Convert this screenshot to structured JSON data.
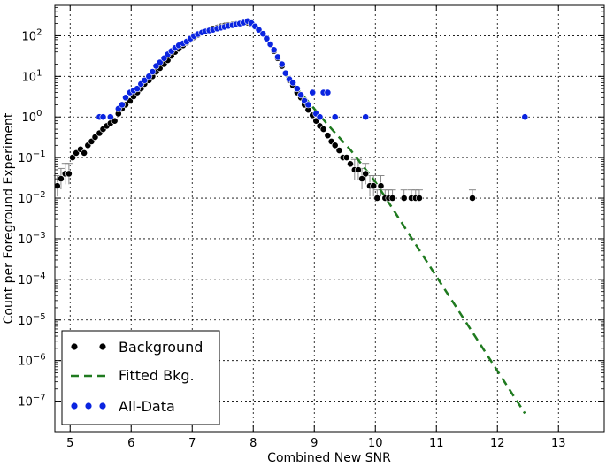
{
  "chart_data": {
    "type": "scatter",
    "xlabel": "Combined New SNR",
    "ylabel": "Count per Foreground Experiment",
    "xlim": [
      4.75,
      13.75
    ],
    "ylim_exp": [
      -7.75,
      2.75
    ],
    "yscale": "log",
    "grid": true,
    "legend_position": "bottom-left",
    "x_ticks": [
      5,
      6,
      7,
      8,
      9,
      10,
      11,
      12,
      13
    ],
    "y_ticks": [
      {
        "exp": 2,
        "label": "10^2"
      },
      {
        "exp": 1,
        "label": "10^1"
      },
      {
        "exp": 0,
        "label": "10^0"
      },
      {
        "exp": -1,
        "label": "10^-1"
      },
      {
        "exp": -2,
        "label": "10^-2"
      },
      {
        "exp": -3,
        "label": "10^-3"
      },
      {
        "exp": -4,
        "label": "10^-4"
      },
      {
        "exp": -5,
        "label": "10^-5"
      },
      {
        "exp": -6,
        "label": "10^-6"
      },
      {
        "exp": -7,
        "label": "10^-7"
      }
    ],
    "series": [
      {
        "name": "Background",
        "color": "#000000",
        "marker": "circle",
        "points": [
          [
            4.79,
            0.02
          ],
          [
            4.85,
            0.03
          ],
          [
            4.92,
            0.04
          ],
          [
            4.98,
            0.04
          ],
          [
            5.04,
            0.1
          ],
          [
            5.1,
            0.13
          ],
          [
            5.17,
            0.16
          ],
          [
            5.23,
            0.13
          ],
          [
            5.29,
            0.2
          ],
          [
            5.35,
            0.25
          ],
          [
            5.41,
            0.32
          ],
          [
            5.48,
            0.4
          ],
          [
            5.54,
            0.5
          ],
          [
            5.6,
            0.6
          ],
          [
            5.66,
            0.7
          ],
          [
            5.73,
            0.8
          ],
          [
            5.79,
            1.2
          ],
          [
            5.85,
            1.6
          ],
          [
            5.91,
            2.0
          ],
          [
            5.98,
            2.5
          ],
          [
            6.04,
            3.2
          ],
          [
            6.1,
            4.0
          ],
          [
            6.16,
            5.0
          ],
          [
            6.22,
            6.5
          ],
          [
            6.29,
            8
          ],
          [
            6.35,
            10
          ],
          [
            6.41,
            13
          ],
          [
            6.47,
            16
          ],
          [
            6.54,
            20
          ],
          [
            6.6,
            25
          ],
          [
            6.66,
            32
          ],
          [
            6.72,
            40
          ],
          [
            6.78,
            48
          ],
          [
            6.85,
            58
          ],
          [
            6.91,
            68
          ],
          [
            6.97,
            80
          ],
          [
            7.03,
            92
          ],
          [
            7.09,
            105
          ],
          [
            7.16,
            118
          ],
          [
            7.22,
            130
          ],
          [
            7.28,
            140
          ],
          [
            7.34,
            150
          ],
          [
            7.41,
            160
          ],
          [
            7.47,
            170
          ],
          [
            7.53,
            178
          ],
          [
            7.59,
            185
          ],
          [
            7.66,
            190
          ],
          [
            7.72,
            195
          ],
          [
            7.78,
            200
          ],
          [
            7.84,
            215
          ],
          [
            7.91,
            210
          ],
          [
            7.97,
            190
          ],
          [
            8.03,
            165
          ],
          [
            8.09,
            140
          ],
          [
            8.16,
            110
          ],
          [
            8.22,
            85
          ],
          [
            8.28,
            60
          ],
          [
            8.34,
            42
          ],
          [
            8.4,
            28
          ],
          [
            8.47,
            18
          ],
          [
            8.53,
            12
          ],
          [
            8.59,
            8
          ],
          [
            8.65,
            6
          ],
          [
            8.72,
            4
          ],
          [
            8.78,
            3
          ],
          [
            8.84,
            2
          ],
          [
            8.9,
            1.5
          ],
          [
            8.97,
            1.1
          ],
          [
            9.03,
            0.8
          ],
          [
            9.09,
            0.6
          ],
          [
            9.15,
            0.5
          ],
          [
            9.22,
            0.35
          ],
          [
            9.28,
            0.25
          ],
          [
            9.34,
            0.2
          ],
          [
            9.41,
            0.15
          ],
          [
            9.47,
            0.1
          ],
          [
            9.53,
            0.1
          ],
          [
            9.59,
            0.07
          ],
          [
            9.66,
            0.05
          ],
          [
            9.72,
            0.05
          ],
          [
            9.78,
            0.03
          ],
          [
            9.84,
            0.04
          ],
          [
            9.91,
            0.02
          ],
          [
            9.97,
            0.02
          ],
          [
            10.03,
            0.01
          ],
          [
            10.09,
            0.02
          ],
          [
            10.16,
            0.01
          ],
          [
            10.22,
            0.01
          ],
          [
            10.28,
            0.01
          ],
          [
            10.47,
            0.01
          ],
          [
            10.59,
            0.01
          ],
          [
            10.66,
            0.01
          ],
          [
            10.72,
            0.01
          ],
          [
            11.59,
            0.01
          ]
        ]
      },
      {
        "name": "Fitted Bkg.",
        "color": "#1f7a1f",
        "line": "dashed",
        "points": [
          [
            8.55,
            10
          ],
          [
            9.2,
            0.7
          ],
          [
            9.6,
            0.15
          ],
          [
            10.0,
            0.025
          ],
          [
            12.45,
            5e-08
          ]
        ]
      },
      {
        "name": "All-Data",
        "color": "#0a24e0",
        "marker": "circle",
        "points": [
          [
            5.48,
            1.0
          ],
          [
            5.54,
            1.0
          ],
          [
            5.66,
            1.0
          ],
          [
            5.79,
            1.6
          ],
          [
            5.85,
            2.0
          ],
          [
            5.91,
            3.0
          ],
          [
            5.98,
            4.0
          ],
          [
            6.04,
            4.5
          ],
          [
            6.1,
            5.0
          ],
          [
            6.16,
            6.5
          ],
          [
            6.22,
            8
          ],
          [
            6.29,
            10
          ],
          [
            6.35,
            13
          ],
          [
            6.41,
            18
          ],
          [
            6.47,
            22
          ],
          [
            6.54,
            28
          ],
          [
            6.6,
            35
          ],
          [
            6.66,
            42
          ],
          [
            6.72,
            50
          ],
          [
            6.78,
            58
          ],
          [
            6.85,
            65
          ],
          [
            6.91,
            72
          ],
          [
            6.97,
            85
          ],
          [
            7.03,
            98
          ],
          [
            7.09,
            110
          ],
          [
            7.16,
            120
          ],
          [
            7.22,
            128
          ],
          [
            7.28,
            135
          ],
          [
            7.34,
            140
          ],
          [
            7.41,
            150
          ],
          [
            7.47,
            158
          ],
          [
            7.53,
            165
          ],
          [
            7.59,
            175
          ],
          [
            7.66,
            182
          ],
          [
            7.72,
            190
          ],
          [
            7.78,
            200
          ],
          [
            7.84,
            210
          ],
          [
            7.91,
            230
          ],
          [
            7.97,
            205
          ],
          [
            8.03,
            170
          ],
          [
            8.09,
            140
          ],
          [
            8.16,
            112
          ],
          [
            8.22,
            85
          ],
          [
            8.28,
            62
          ],
          [
            8.34,
            45
          ],
          [
            8.4,
            30
          ],
          [
            8.47,
            20
          ],
          [
            8.53,
            12
          ],
          [
            8.59,
            8.5
          ],
          [
            8.65,
            7
          ],
          [
            8.72,
            5
          ],
          [
            8.78,
            3.5
          ],
          [
            8.84,
            2.5
          ],
          [
            8.9,
            2.0
          ],
          [
            8.97,
            4.0
          ],
          [
            9.03,
            1.2
          ],
          [
            9.09,
            1.0
          ],
          [
            9.15,
            4.0
          ],
          [
            9.22,
            4.0
          ],
          [
            9.34,
            1.0
          ],
          [
            9.84,
            1.0
          ],
          [
            12.45,
            1.0
          ]
        ]
      }
    ]
  }
}
